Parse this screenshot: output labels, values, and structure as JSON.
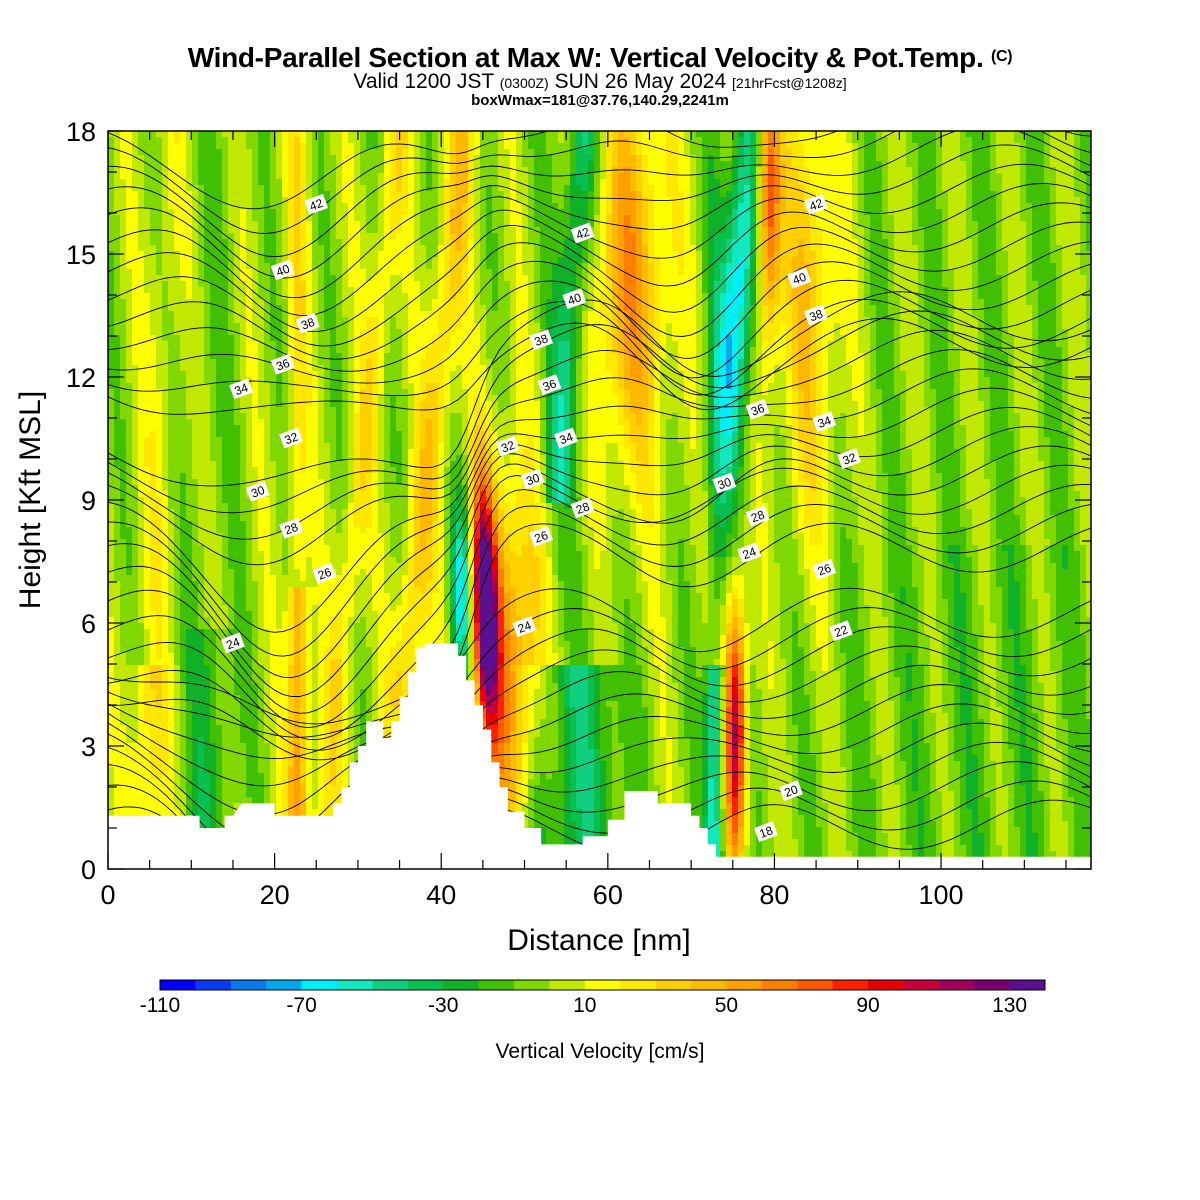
{
  "header": {
    "title_main": "Wind-Parallel Section at Max W: Vertical Velocity & Pot.Temp.",
    "title_mark": "(C)",
    "valid_prefix": "Valid 1200 JST",
    "valid_zulu": "(0300Z)",
    "valid_date": "SUN 26 May 2024",
    "valid_fcst": "[21hrFcst@1208z]",
    "box_info": "boxWmax=181@37.76,140.29,2241m"
  },
  "chart_data": {
    "type": "heatmap",
    "xlabel": "Distance [nm]",
    "ylabel": "Height [Kft MSL]",
    "xlim": [
      0,
      118
    ],
    "ylim": [
      0,
      18
    ],
    "x_ticks": [
      0,
      20,
      40,
      60,
      80,
      100
    ],
    "y_ticks": [
      0,
      3,
      6,
      9,
      12,
      15,
      18
    ],
    "colorbar": {
      "label": "Vertical Velocity [cm/s]",
      "tick_values": [
        -110,
        -70,
        -30,
        10,
        50,
        90,
        130
      ],
      "min": -110,
      "max": 140,
      "step": 10,
      "colors": [
        "#0000ff",
        "#0a3cf5",
        "#0878ee",
        "#00a8f0",
        "#00f0f8",
        "#10e8c0",
        "#10d080",
        "#08c050",
        "#10b028",
        "#40c000",
        "#80d800",
        "#c0e800",
        "#ffff00",
        "#ffe800",
        "#ffd000",
        "#ffb800",
        "#ffa000",
        "#ff8000",
        "#ff5800",
        "#ff2000",
        "#e80000",
        "#c8003c",
        "#a00058",
        "#780070",
        "#5a1090"
      ]
    },
    "field_description_approx": [
      {
        "type": "updraft_column",
        "x": 23,
        "w_max": 70
      },
      {
        "type": "updraft_column",
        "x": 45,
        "w_max": 140
      },
      {
        "type": "updraft_column",
        "x": 62,
        "w_max": 60
      },
      {
        "type": "updraft_column",
        "x": 75,
        "w_max": 110
      },
      {
        "type": "downdraft_column",
        "x": 43,
        "w_min": -70
      },
      {
        "type": "downdraft_column",
        "x": 73,
        "w_min": -80
      }
    ],
    "terrain_kft": [
      [
        0,
        1.3
      ],
      [
        11,
        1.3
      ],
      [
        11,
        1.0
      ],
      [
        14,
        1.0
      ],
      [
        14,
        1.3
      ],
      [
        15,
        1.3
      ],
      [
        16,
        1.6
      ],
      [
        20,
        1.6
      ],
      [
        20,
        1.3
      ],
      [
        27,
        1.3
      ],
      [
        27,
        1.6
      ],
      [
        28,
        1.6
      ],
      [
        28,
        2.0
      ],
      [
        29,
        2.0
      ],
      [
        29,
        2.6
      ],
      [
        30,
        2.6
      ],
      [
        30,
        3.0
      ],
      [
        31,
        3.0
      ],
      [
        31,
        3.6
      ],
      [
        33,
        3.6
      ],
      [
        33,
        3.2
      ],
      [
        34,
        3.2
      ],
      [
        34,
        3.6
      ],
      [
        35,
        3.6
      ],
      [
        35,
        4.2
      ],
      [
        36,
        4.2
      ],
      [
        36,
        4.8
      ],
      [
        37,
        4.8
      ],
      [
        37,
        5.4
      ],
      [
        38,
        5.4
      ],
      [
        38,
        5.5
      ],
      [
        42,
        5.5
      ],
      [
        42,
        5.2
      ],
      [
        43,
        5.2
      ],
      [
        43,
        4.6
      ],
      [
        44,
        4.6
      ],
      [
        44,
        4.0
      ],
      [
        45,
        4.0
      ],
      [
        45,
        3.4
      ],
      [
        46,
        3.4
      ],
      [
        46,
        2.6
      ],
      [
        47,
        2.6
      ],
      [
        47,
        2.0
      ],
      [
        48,
        2.0
      ],
      [
        48,
        1.4
      ],
      [
        50,
        1.4
      ],
      [
        50,
        1.0
      ],
      [
        52,
        1.0
      ],
      [
        52,
        0.6
      ],
      [
        57,
        0.6
      ],
      [
        57,
        0.8
      ],
      [
        60,
        0.8
      ],
      [
        60,
        1.2
      ],
      [
        62,
        1.2
      ],
      [
        62,
        1.9
      ],
      [
        66,
        1.9
      ],
      [
        66,
        1.6
      ],
      [
        70,
        1.6
      ],
      [
        70,
        1.3
      ],
      [
        71,
        1.3
      ],
      [
        71,
        1.0
      ],
      [
        72,
        1.0
      ],
      [
        72,
        0.6
      ],
      [
        73,
        0.6
      ],
      [
        73,
        0.3
      ],
      [
        75,
        0.3
      ],
      [
        75,
        0.3
      ],
      [
        118,
        0.3
      ]
    ],
    "theta_contours": [
      {
        "label": "18",
        "label_at": [
          79,
          0.9
        ]
      },
      {
        "label": "20",
        "label_at": [
          82,
          1.9
        ]
      },
      {
        "label": "22",
        "label_at": [
          88,
          5.8
        ]
      },
      {
        "label": "24",
        "label_at": [
          15,
          5.5
        ]
      },
      {
        "label": "24",
        "label_at": [
          50,
          5.9
        ]
      },
      {
        "label": "24",
        "label_at": [
          77,
          7.7
        ]
      },
      {
        "label": "26",
        "label_at": [
          26,
          7.2
        ]
      },
      {
        "label": "26",
        "label_at": [
          52,
          8.1
        ]
      },
      {
        "label": "26",
        "label_at": [
          86,
          7.3
        ]
      },
      {
        "label": "28",
        "label_at": [
          22,
          8.3
        ]
      },
      {
        "label": "28",
        "label_at": [
          57,
          8.8
        ]
      },
      {
        "label": "28",
        "label_at": [
          78,
          8.6
        ]
      },
      {
        "label": "30",
        "label_at": [
          18,
          9.2
        ]
      },
      {
        "label": "30",
        "label_at": [
          51,
          9.5
        ]
      },
      {
        "label": "30",
        "label_at": [
          74,
          9.4
        ]
      },
      {
        "label": "32",
        "label_at": [
          22,
          10.5
        ]
      },
      {
        "label": "32",
        "label_at": [
          48,
          10.3
        ]
      },
      {
        "label": "32",
        "label_at": [
          89,
          10.0
        ]
      },
      {
        "label": "34",
        "label_at": [
          16,
          11.7
        ]
      },
      {
        "label": "34",
        "label_at": [
          55,
          10.5
        ]
      },
      {
        "label": "34",
        "label_at": [
          86,
          10.9
        ]
      },
      {
        "label": "36",
        "label_at": [
          21,
          12.3
        ]
      },
      {
        "label": "36",
        "label_at": [
          53,
          11.8
        ]
      },
      {
        "label": "36",
        "label_at": [
          78,
          11.2
        ]
      },
      {
        "label": "38",
        "label_at": [
          24,
          13.3
        ]
      },
      {
        "label": "38",
        "label_at": [
          52,
          12.9
        ]
      },
      {
        "label": "38",
        "label_at": [
          85,
          13.5
        ]
      },
      {
        "label": "40",
        "label_at": [
          21,
          14.6
        ]
      },
      {
        "label": "40",
        "label_at": [
          56,
          13.9
        ]
      },
      {
        "label": "40",
        "label_at": [
          83,
          14.4
        ]
      },
      {
        "label": "42",
        "label_at": [
          25,
          16.2
        ]
      },
      {
        "label": "42",
        "label_at": [
          57,
          15.5
        ]
      },
      {
        "label": "42",
        "label_at": [
          85,
          16.2
        ]
      }
    ]
  }
}
